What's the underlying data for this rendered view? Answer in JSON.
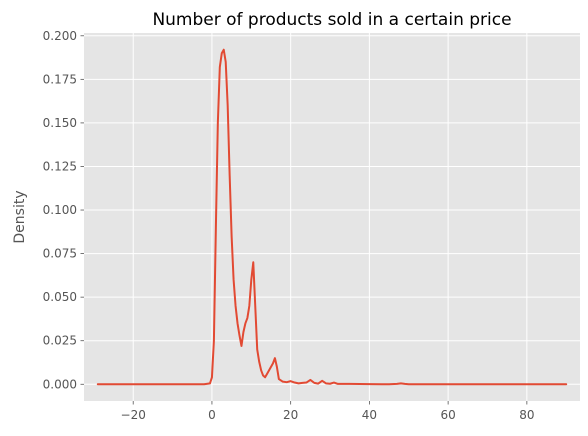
{
  "chart_data": {
    "type": "line",
    "title": "Number of products sold in a certain price",
    "xlabel": "",
    "ylabel": "Density",
    "xlim": [
      -32.5,
      93.5
    ],
    "ylim": [
      -0.0096,
      0.2016
    ],
    "xticks": [
      -20,
      0,
      20,
      40,
      60,
      80
    ],
    "yticks": [
      0.0,
      0.025,
      0.05,
      0.075,
      0.1,
      0.125,
      0.15,
      0.175,
      0.2
    ],
    "xtick_labels": [
      "−20",
      "0",
      "20",
      "40",
      "60",
      "80"
    ],
    "ytick_labels": [
      "0.000",
      "0.025",
      "0.050",
      "0.075",
      "0.100",
      "0.125",
      "0.150",
      "0.175",
      "0.200"
    ],
    "grid": true,
    "series": [
      {
        "color": "#e24a33",
        "x": [
          -29,
          -20,
          -10,
          -2,
          -0.5,
          0,
          0.5,
          1,
          1.5,
          2,
          2.5,
          3,
          3.5,
          4,
          4.5,
          5,
          5.5,
          6,
          6.5,
          7,
          7.5,
          8,
          8.5,
          9,
          9.5,
          10,
          10.5,
          11,
          11.5,
          12,
          12.5,
          13,
          13.5,
          14,
          14.5,
          15,
          15.5,
          16,
          16.5,
          17,
          18,
          19,
          20,
          21,
          22,
          23,
          24,
          25,
          26,
          27,
          28,
          29,
          30,
          31,
          32,
          35,
          40,
          45,
          47,
          48,
          49,
          50,
          60,
          70,
          80,
          90
        ],
        "y": [
          0,
          0,
          0,
          0,
          0.0005,
          0.004,
          0.025,
          0.09,
          0.15,
          0.182,
          0.19,
          0.192,
          0.185,
          0.16,
          0.12,
          0.085,
          0.06,
          0.045,
          0.035,
          0.028,
          0.022,
          0.03,
          0.035,
          0.038,
          0.045,
          0.06,
          0.07,
          0.045,
          0.02,
          0.013,
          0.008,
          0.005,
          0.004,
          0.006,
          0.008,
          0.01,
          0.012,
          0.015,
          0.01,
          0.003,
          0.0015,
          0.0012,
          0.0018,
          0.001,
          0.0005,
          0.0008,
          0.001,
          0.0025,
          0.0008,
          0.0004,
          0.002,
          0.0005,
          0.0003,
          0.001,
          0.0002,
          0.0002,
          0.0001,
          0,
          0.0002,
          0.0005,
          0.0002,
          0,
          0,
          0,
          0,
          0
        ]
      }
    ]
  }
}
